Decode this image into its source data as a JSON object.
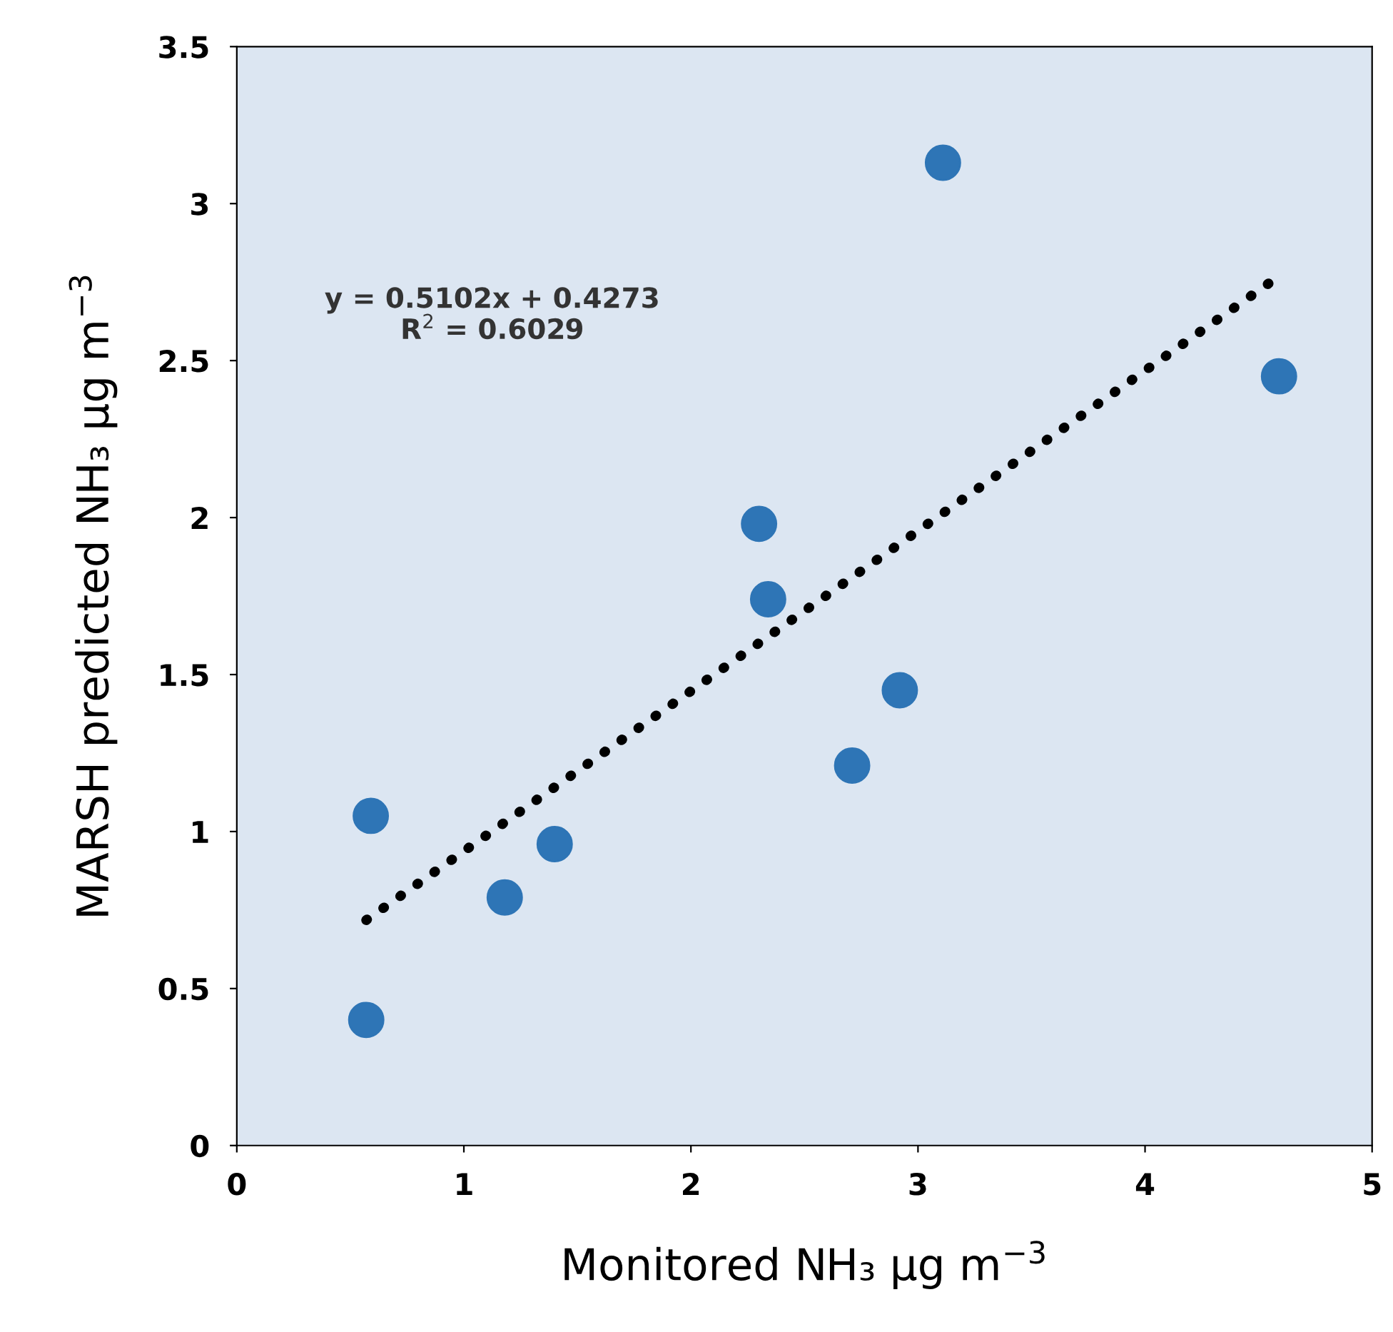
{
  "chart_data": {
    "type": "scatter",
    "xlabel": "Monitored NH₃ µg m$^{−3}$",
    "ylabel": "MARSH predicted NH₃ µg m$^{−3}$",
    "grid": false,
    "series": [
      {
        "color": "#2e75b6",
        "marker": "circle",
        "x": [
          0.57,
          0.59,
          1.18,
          1.4,
          2.3,
          2.34,
          2.71,
          2.92,
          3.11,
          4.59
        ],
        "values": [
          0.4,
          1.05,
          0.79,
          0.96,
          1.98,
          1.74,
          1.21,
          1.45,
          3.13,
          2.45
        ]
      },
      {
        "type": "line",
        "color": "#000000",
        "line_style": "dotted",
        "x": [
          0.57,
          4.59
        ],
        "values": [
          0.718,
          2.769
        ]
      }
    ],
    "annotations": [
      "y = 0.5102x + 0.4273\nR$^{2}$ = 0.6029"
    ],
    "xlim": [
      0,
      5
    ],
    "ylim": [
      0,
      3.5
    ],
    "xticks": [
      0,
      1,
      2,
      3,
      4,
      5
    ],
    "yticks": [
      0,
      0.5,
      1,
      1.5,
      2,
      2.5,
      3,
      3.5
    ]
  }
}
